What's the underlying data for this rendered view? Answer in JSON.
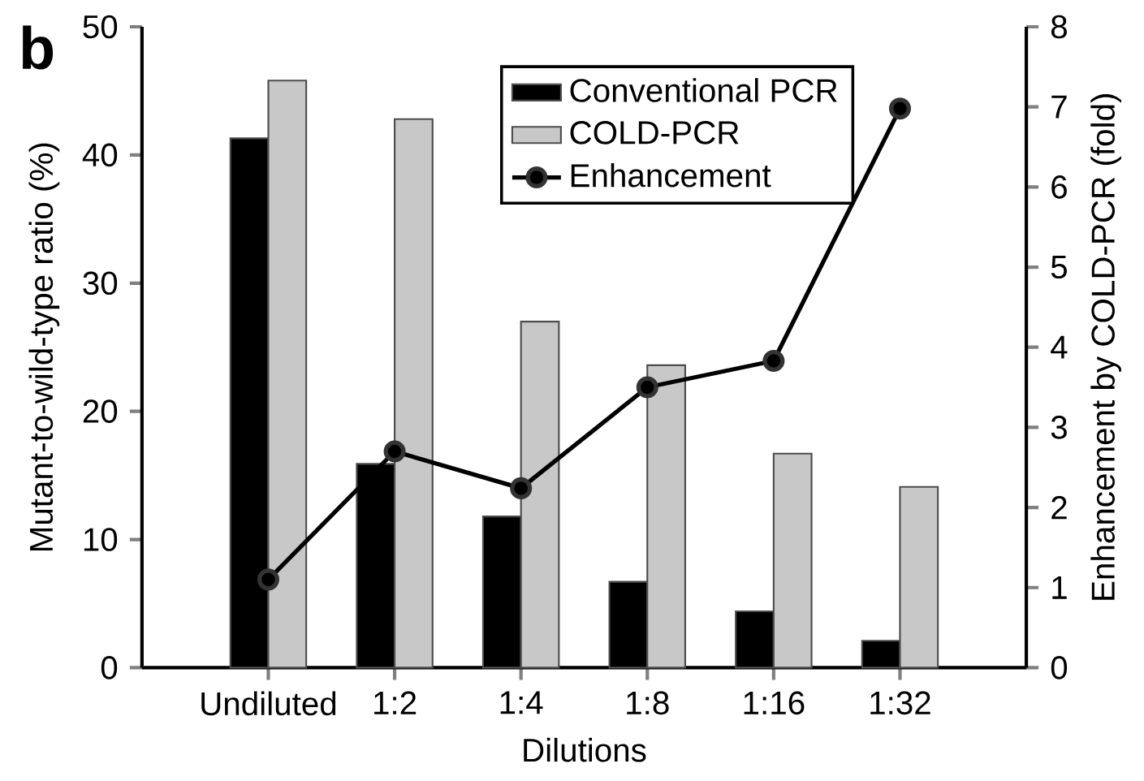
{
  "chart_data": {
    "type": "bar",
    "annotations": [
      "**b**"
    ],
    "xlabel": "Dilutions",
    "ylabel": "Mutant-to-wild-type ratio (%)",
    "y2label": "Enhancement by COLD-PCR (fold)",
    "categories": [
      "Undiluted",
      "1:2",
      "1:4",
      "1:8",
      "1:16",
      "1:32"
    ],
    "series": [
      {
        "name": "Conventional PCR",
        "color": "#000000",
        "values": [
          41.3,
          15.9,
          11.8,
          6.7,
          4.4,
          2.1
        ]
      },
      {
        "name": "COLD-PCR",
        "color": "#c8c8c8",
        "values": [
          45.8,
          42.8,
          27.0,
          23.6,
          16.7,
          14.1
        ]
      },
      {
        "name": "Enhancement",
        "type": "line",
        "axis": "y2",
        "color": "#000000",
        "marker": "circle",
        "line_style": "solid",
        "values": [
          1.1,
          2.7,
          2.24,
          3.5,
          3.83,
          6.98
        ]
      }
    ],
    "ylim": [
      0,
      50
    ],
    "yticks": [
      0,
      10,
      20,
      30,
      40,
      50
    ],
    "y2lim": [
      0,
      8
    ],
    "y2ticks": [
      0,
      1,
      2,
      3,
      4,
      5,
      6,
      7,
      8
    ],
    "grid": false,
    "legend": "top"
  }
}
